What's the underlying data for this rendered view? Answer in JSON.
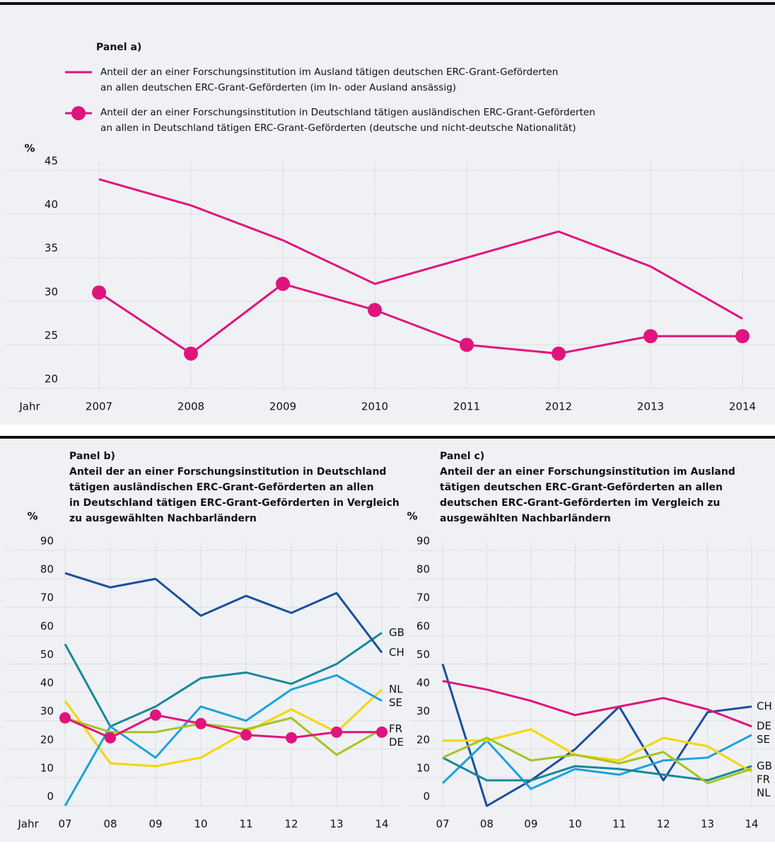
{
  "chart_data": [
    {
      "type": "line",
      "panel": "Panel a)",
      "ylabel": "%",
      "xlabel": "Jahr",
      "categories": [
        "2007",
        "2008",
        "2009",
        "2010",
        "2011",
        "2012",
        "2013",
        "2014"
      ],
      "ylim": [
        20,
        45
      ],
      "yticks": [
        20,
        25,
        30,
        35,
        40,
        45
      ],
      "grid": true,
      "series": [
        {
          "name": "Anteil der an einer Forschungsinstitution im Ausland tätigen deutschen ERC-Grant-Geförderten\nan allen deutschen ERC-Grant-Geförderten (im In- oder Ausland ansässig)",
          "color": "#e0147d",
          "markers": false,
          "values": [
            44,
            41,
            37,
            32,
            35,
            38,
            34,
            28
          ]
        },
        {
          "name": "Anteil der an einer Forschungsinstitution in Deutschland tätigen ausländischen ERC-Grant-Geförderten\nan allen in Deutschland tätigen ERC-Grant-Geförderten (deutsche und nicht-deutsche Nationalität)",
          "color": "#e0147d",
          "markers": true,
          "values": [
            31,
            24,
            32,
            29,
            25,
            24,
            26,
            26
          ]
        }
      ]
    },
    {
      "type": "line",
      "panel": "Panel b)",
      "title": "Anteil der an einer Forschungsinstitution in Deutschland\ntätigen ausländischen ERC-Grant-Geförderten an allen\nin Deutschland tätigen ERC-Grant-Geförderten in Vergleich\nzu ausgewählten Nachbarländern",
      "ylabel": "%",
      "xlabel": "Jahr",
      "categories": [
        "07",
        "08",
        "09",
        "10",
        "11",
        "12",
        "13",
        "14"
      ],
      "ylim": [
        0,
        90
      ],
      "yticks": [
        0,
        10,
        20,
        30,
        40,
        50,
        60,
        70,
        80,
        90
      ],
      "grid": true,
      "series": [
        {
          "name": "GB",
          "color": "#17889a",
          "markers": false,
          "values": [
            57,
            28,
            35,
            45,
            47,
            43,
            50,
            61
          ]
        },
        {
          "name": "CH",
          "color": "#1b4f9b",
          "markers": false,
          "values": [
            82,
            77,
            80,
            67,
            74,
            68,
            75,
            54
          ]
        },
        {
          "name": "NL",
          "color": "#f5d600",
          "markers": false,
          "values": [
            37,
            15,
            14,
            17,
            26,
            34,
            26,
            41
          ]
        },
        {
          "name": "SE",
          "color": "#1aa2dd",
          "markers": false,
          "values": [
            0,
            28,
            17,
            35,
            30,
            41,
            46,
            37
          ]
        },
        {
          "name": "FR",
          "color": "#a6c31f",
          "markers": false,
          "values": [
            31,
            26,
            26,
            29,
            27,
            31,
            18,
            27
          ]
        },
        {
          "name": "DE",
          "color": "#e0147d",
          "markers": true,
          "values": [
            31,
            24,
            32,
            29,
            25,
            24,
            26,
            26
          ]
        }
      ]
    },
    {
      "type": "line",
      "panel": "Panel c)",
      "title": "Anteil der an einer Forschungsinstitution im Ausland\ntätigen deutschen ERC-Grant-Geförderten an allen\ndeutschen ERC-Grant-Geförderten im Vergleich zu\nausgewählten Nachbarländern",
      "ylabel": "%",
      "categories": [
        "07",
        "08",
        "09",
        "10",
        "11",
        "12",
        "13",
        "14"
      ],
      "ylim": [
        0,
        90
      ],
      "yticks": [
        0,
        10,
        20,
        30,
        40,
        50,
        60,
        70,
        80,
        90
      ],
      "grid": true,
      "series": [
        {
          "name": "CH",
          "color": "#1b4f9b",
          "markers": false,
          "values": [
            50,
            0,
            9,
            20,
            35,
            9,
            33,
            35
          ]
        },
        {
          "name": "DE",
          "color": "#e0147d",
          "markers": false,
          "values": [
            44,
            41,
            37,
            32,
            35,
            38,
            34,
            28
          ]
        },
        {
          "name": "SE",
          "color": "#1aa2dd",
          "markers": false,
          "values": [
            8,
            23,
            6,
            13,
            11,
            16,
            17,
            25
          ]
        },
        {
          "name": "GB",
          "color": "#17889a",
          "markers": false,
          "values": [
            17,
            9,
            9,
            14,
            13,
            11,
            9,
            14
          ]
        },
        {
          "name": "NL",
          "color": "#f5d600",
          "markers": false,
          "values": [
            23,
            23,
            27,
            18,
            16,
            24,
            21,
            12
          ]
        },
        {
          "name": "FR",
          "color": "#a6c31f",
          "markers": false,
          "values": [
            17,
            24,
            16,
            18,
            15,
            19,
            8,
            13
          ]
        }
      ]
    }
  ]
}
